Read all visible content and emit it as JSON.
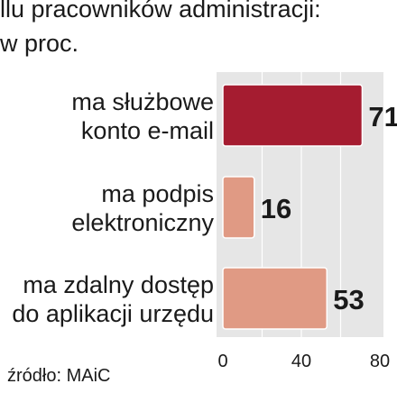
{
  "header": {
    "line1": "llu pracowników administracji:",
    "line2": "w proc."
  },
  "source": "źródło: MAiC",
  "chart_data": {
    "type": "bar",
    "orientation": "horizontal",
    "title": "",
    "xlabel": "",
    "ylabel": "",
    "xlim": [
      0,
      80
    ],
    "ticks": [
      "0",
      "40",
      "80"
    ],
    "grid": true,
    "categories": [
      [
        "ma służbowe",
        "konto e-mail"
      ],
      [
        "ma podpis",
        "elektroniczny"
      ],
      [
        "ma zdalny dostęp",
        "do aplikacji urzędu"
      ]
    ],
    "values": [
      71,
      16,
      53
    ],
    "value_labels": [
      "71",
      "16",
      "53"
    ],
    "colors": [
      "#a51c30",
      "#e09a84",
      "#e09a84"
    ],
    "plot_background": "#e6e6e6",
    "grid_color": "#ffffff"
  }
}
